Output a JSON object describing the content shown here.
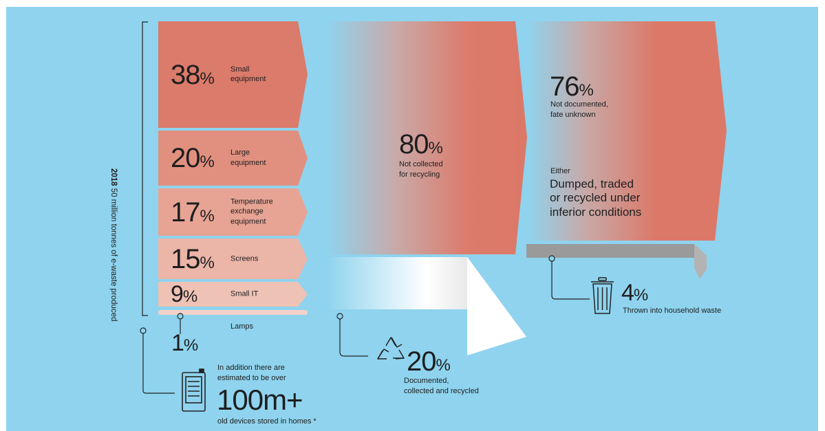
{
  "side_label_year": "2018",
  "side_label_text": "50 million tonnes of e-waste produced",
  "categories": [
    {
      "value": "38",
      "unit": "%",
      "label": "Small\nequipment",
      "color": "#db7b6b"
    },
    {
      "value": "20",
      "unit": "%",
      "label": "Large\nequipment",
      "color": "#e1907f"
    },
    {
      "value": "17",
      "unit": "%",
      "label": "Temperature\nexchange\nequipment",
      "color": "#e7a494"
    },
    {
      "value": "15",
      "unit": "%",
      "label": "Screens",
      "color": "#ebb5a8"
    },
    {
      "value": "9",
      "unit": "%",
      "label": "Small IT",
      "color": "#efc2b6"
    }
  ],
  "lamps": {
    "label": "Lamps",
    "value": "1",
    "unit": "%",
    "color": "#f3d2c9"
  },
  "stored": {
    "intro": "In addition there are\nestimated to be over",
    "value": "100m+",
    "caption": "old devices stored in homes *"
  },
  "not_collected": {
    "value": "80",
    "unit": "%",
    "label": "Not collected\nfor recycling"
  },
  "collected": {
    "value": "20",
    "unit": "%",
    "label": "Documented,\ncollected and recycled"
  },
  "unknown": {
    "value": "76",
    "unit": "%",
    "label": "Not documented,\nfate unknown",
    "either": "Either",
    "fate": "Dumped, traded\nor recycled under\ninferior conditions"
  },
  "household": {
    "value": "4",
    "unit": "%",
    "label": "Thrown into household waste"
  },
  "icons": [
    "phone-icon",
    "recycle-icon",
    "trash-bin-icon"
  ],
  "colors": {
    "background": "#8fd3ee",
    "flow": "#dc7868",
    "grey": "#9a9a9a"
  }
}
